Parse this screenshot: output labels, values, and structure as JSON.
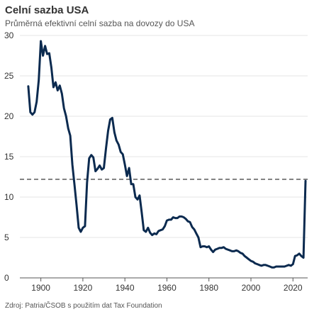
{
  "title": "Celní sazba USA",
  "subtitle": "Průměrná efektivní celní sazba na dovozy do USA",
  "source": "Zdroj: Patria/ČSOB s použitím dat  Tax Foundation",
  "colors": {
    "line": "#0b2a4f",
    "reference": "#666666",
    "grid": "#e6e6e6",
    "axis": "#555555"
  },
  "chart_data": {
    "type": "line",
    "title": "Celní sazba USA",
    "subtitle": "Průměrná efektivní celní sazba na dovozy do USA",
    "xlabel": "",
    "ylabel": "",
    "xlim": [
      1890,
      2027
    ],
    "ylim": [
      0,
      30
    ],
    "x_ticks": [
      1900,
      1920,
      1940,
      1960,
      1980,
      2000,
      2020
    ],
    "y_ticks": [
      0,
      5,
      10,
      15,
      20,
      25,
      30
    ],
    "grid": true,
    "legend": "none",
    "reference_lines": [
      {
        "y": 12.2,
        "style": "dashed"
      }
    ],
    "series": [
      {
        "points": [
          [
            1894,
            23.7
          ],
          [
            1895,
            20.5
          ],
          [
            1896,
            20.2
          ],
          [
            1897,
            20.5
          ],
          [
            1898,
            21.8
          ],
          [
            1899,
            24.5
          ],
          [
            1900,
            29.3
          ],
          [
            1901,
            27.5
          ],
          [
            1902,
            28.7
          ],
          [
            1903,
            27.7
          ],
          [
            1904,
            27.8
          ],
          [
            1905,
            26.0
          ],
          [
            1906,
            23.6
          ],
          [
            1907,
            24.2
          ],
          [
            1908,
            23.2
          ],
          [
            1909,
            23.8
          ],
          [
            1910,
            22.8
          ],
          [
            1911,
            21.0
          ],
          [
            1912,
            20.0
          ],
          [
            1913,
            18.5
          ],
          [
            1914,
            17.6
          ],
          [
            1915,
            14.0
          ],
          [
            1916,
            11.5
          ],
          [
            1917,
            9.0
          ],
          [
            1918,
            6.2
          ],
          [
            1919,
            5.7
          ],
          [
            1920,
            6.2
          ],
          [
            1921,
            6.4
          ],
          [
            1922,
            11.8
          ],
          [
            1923,
            14.8
          ],
          [
            1924,
            15.2
          ],
          [
            1925,
            14.9
          ],
          [
            1926,
            13.2
          ],
          [
            1927,
            13.5
          ],
          [
            1928,
            13.9
          ],
          [
            1929,
            13.4
          ],
          [
            1930,
            13.6
          ],
          [
            1931,
            16.0
          ],
          [
            1932,
            18.2
          ],
          [
            1933,
            19.6
          ],
          [
            1934,
            19.8
          ],
          [
            1935,
            18.0
          ],
          [
            1936,
            17.0
          ],
          [
            1937,
            16.5
          ],
          [
            1938,
            15.6
          ],
          [
            1939,
            15.3
          ],
          [
            1940,
            14.0
          ],
          [
            1941,
            12.6
          ],
          [
            1942,
            13.6
          ],
          [
            1943,
            11.6
          ],
          [
            1944,
            11.6
          ],
          [
            1945,
            10.0
          ],
          [
            1946,
            9.7
          ],
          [
            1947,
            10.2
          ],
          [
            1948,
            8.1
          ],
          [
            1949,
            5.9
          ],
          [
            1950,
            5.7
          ],
          [
            1951,
            6.2
          ],
          [
            1952,
            5.6
          ],
          [
            1953,
            5.3
          ],
          [
            1954,
            5.5
          ],
          [
            1955,
            5.4
          ],
          [
            1956,
            5.8
          ],
          [
            1957,
            5.9
          ],
          [
            1958,
            6.0
          ],
          [
            1959,
            6.4
          ],
          [
            1960,
            7.1
          ],
          [
            1961,
            7.2
          ],
          [
            1962,
            7.2
          ],
          [
            1963,
            7.5
          ],
          [
            1964,
            7.4
          ],
          [
            1965,
            7.4
          ],
          [
            1966,
            7.6
          ],
          [
            1967,
            7.6
          ],
          [
            1968,
            7.5
          ],
          [
            1969,
            7.3
          ],
          [
            1970,
            7.0
          ],
          [
            1971,
            6.9
          ],
          [
            1972,
            6.3
          ],
          [
            1973,
            6.0
          ],
          [
            1974,
            5.5
          ],
          [
            1975,
            5.0
          ],
          [
            1976,
            3.8
          ],
          [
            1977,
            3.9
          ],
          [
            1978,
            3.9
          ],
          [
            1979,
            3.8
          ],
          [
            1980,
            3.9
          ],
          [
            1981,
            3.5
          ],
          [
            1982,
            3.2
          ],
          [
            1983,
            3.5
          ],
          [
            1984,
            3.6
          ],
          [
            1985,
            3.7
          ],
          [
            1986,
            3.7
          ],
          [
            1987,
            3.8
          ],
          [
            1988,
            3.6
          ],
          [
            1989,
            3.5
          ],
          [
            1990,
            3.4
          ],
          [
            1991,
            3.3
          ],
          [
            1992,
            3.3
          ],
          [
            1993,
            3.4
          ],
          [
            1994,
            3.3
          ],
          [
            1995,
            3.1
          ],
          [
            1996,
            3.0
          ],
          [
            1997,
            2.7
          ],
          [
            1998,
            2.5
          ],
          [
            1999,
            2.3
          ],
          [
            2000,
            2.1
          ],
          [
            2001,
            2.0
          ],
          [
            2002,
            1.8
          ],
          [
            2003,
            1.7
          ],
          [
            2004,
            1.6
          ],
          [
            2005,
            1.5
          ],
          [
            2006,
            1.6
          ],
          [
            2007,
            1.6
          ],
          [
            2008,
            1.5
          ],
          [
            2009,
            1.4
          ],
          [
            2010,
            1.3
          ],
          [
            2011,
            1.3
          ],
          [
            2012,
            1.4
          ],
          [
            2013,
            1.4
          ],
          [
            2014,
            1.4
          ],
          [
            2015,
            1.4
          ],
          [
            2016,
            1.4
          ],
          [
            2017,
            1.5
          ],
          [
            2018,
            1.6
          ],
          [
            2019,
            1.5
          ],
          [
            2020,
            1.7
          ],
          [
            2021,
            2.7
          ],
          [
            2022,
            2.8
          ],
          [
            2023,
            3.0
          ],
          [
            2024,
            2.7
          ],
          [
            2025,
            2.5
          ],
          [
            2026,
            12.0
          ]
        ]
      }
    ]
  }
}
